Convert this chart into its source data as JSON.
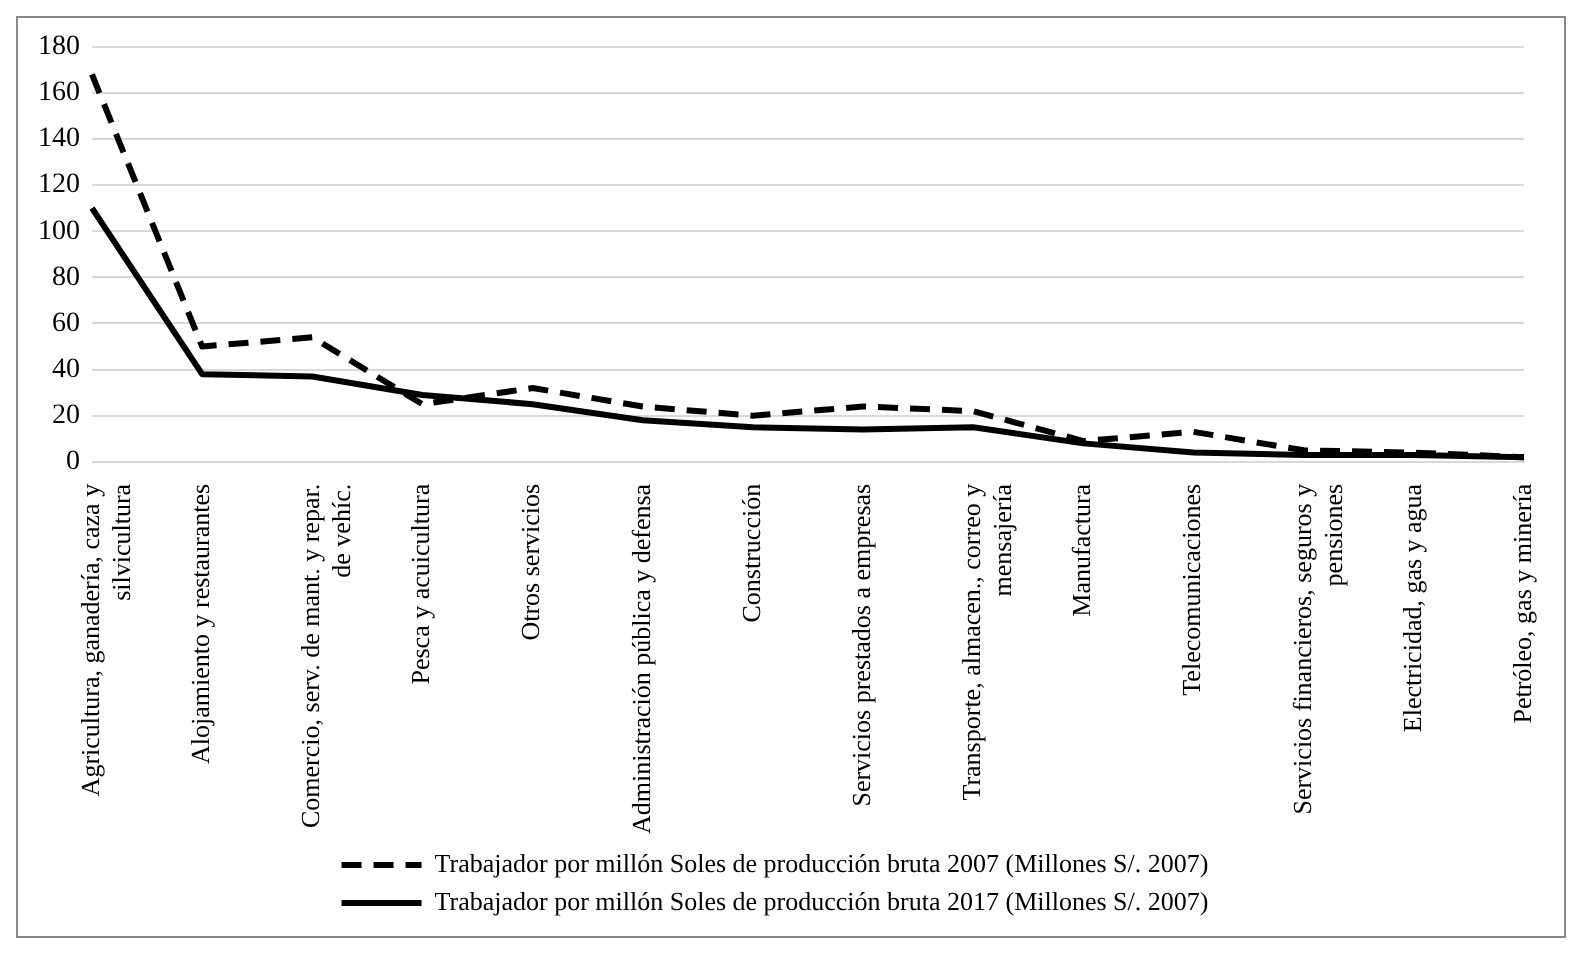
{
  "chart_data": {
    "type": "line",
    "categories": [
      "Agricultura, ganadería, caza y silvicultura",
      "Alojamiento y restaurantes",
      "Comercio, serv. de mant. y repar. de vehíc.",
      "Pesca y acuicultura",
      "Otros servicios",
      "Administración pública y defensa",
      "Construcción",
      "Servicios prestados a empresas",
      "Transporte, almacen., correo y mensajería",
      "Manufactura",
      "Telecomunicaciones",
      "Servicios financieros, seguros y pensiones",
      "Electricidad, gas y agua",
      "Petróleo, gas y minería"
    ],
    "series": [
      {
        "name": "Trabajador por millón Soles de producción bruta 2007 (Millones S/. 2007)",
        "color": "#000000",
        "line_style": "dashed",
        "values": [
          168,
          50,
          54,
          25,
          32,
          24,
          20,
          24,
          22,
          9,
          13,
          5,
          4,
          2
        ]
      },
      {
        "name": "Trabajador por millón Soles de producción bruta 2017 (Millones S/. 2007)",
        "color": "#000000",
        "line_style": "solid",
        "values": [
          110,
          38,
          37,
          29,
          25,
          18,
          15,
          14,
          15,
          8,
          4,
          3,
          3,
          2
        ]
      }
    ],
    "ylim": [
      0,
      180
    ],
    "yticks": [
      0,
      20,
      40,
      60,
      80,
      100,
      120,
      140,
      160,
      180
    ],
    "grid": "y",
    "legend": "bottom",
    "marker": "none"
  }
}
